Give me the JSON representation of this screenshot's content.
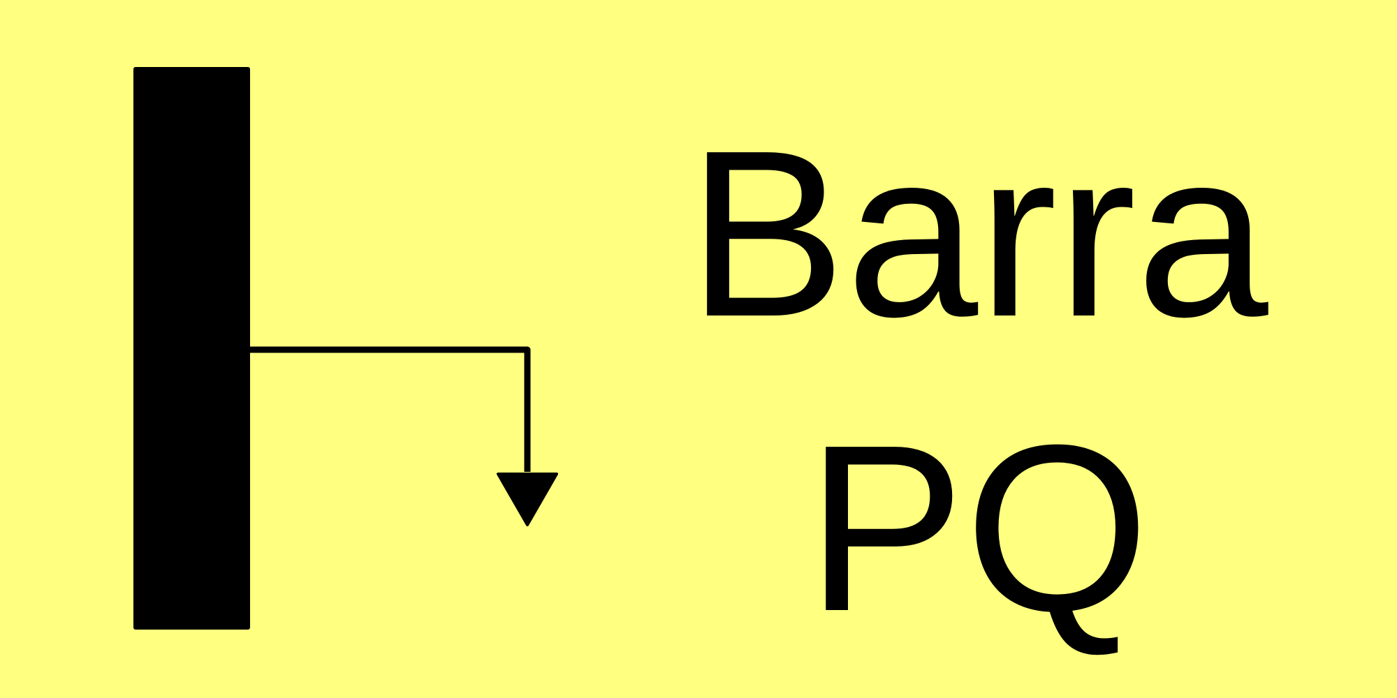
{
  "label": {
    "line1": "Barra",
    "line2": "PQ"
  },
  "colors": {
    "background": "#ffff80",
    "foreground": "#000000"
  },
  "icons": {
    "bus": "bus-bar-icon",
    "load": "load-arrow-icon"
  }
}
